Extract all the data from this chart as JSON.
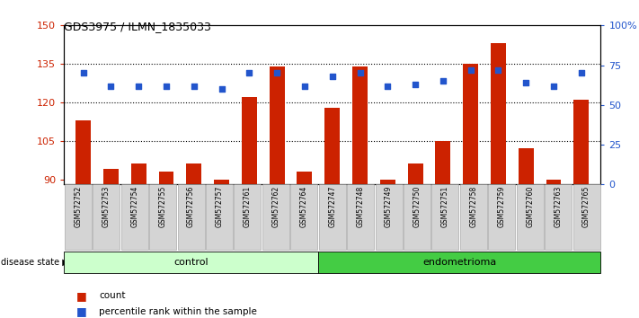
{
  "title": "GDS3975 / ILMN_1835033",
  "samples": [
    "GSM572752",
    "GSM572753",
    "GSM572754",
    "GSM572755",
    "GSM572756",
    "GSM572757",
    "GSM572761",
    "GSM572762",
    "GSM572764",
    "GSM572747",
    "GSM572748",
    "GSM572749",
    "GSM572750",
    "GSM572751",
    "GSM572758",
    "GSM572759",
    "GSM572760",
    "GSM572763",
    "GSM572765"
  ],
  "bar_values": [
    113,
    94,
    96,
    93,
    96,
    90,
    122,
    134,
    93,
    118,
    134,
    90,
    96,
    105,
    135,
    143,
    102,
    90,
    121
  ],
  "dot_values": [
    70,
    62,
    62,
    62,
    62,
    60,
    70,
    70,
    62,
    68,
    70,
    62,
    63,
    65,
    72,
    72,
    64,
    62,
    70
  ],
  "ylim_left": [
    88,
    150
  ],
  "ylim_right": [
    0,
    100
  ],
  "yticks_left": [
    90,
    105,
    120,
    135,
    150
  ],
  "yticks_right": [
    0,
    25,
    50,
    75,
    100
  ],
  "ytick_labels_left": [
    "90",
    "105",
    "120",
    "135",
    "150"
  ],
  "ytick_labels_right": [
    "0",
    "25",
    "50",
    "75",
    "100%"
  ],
  "bar_color": "#cc2200",
  "dot_color": "#2255cc",
  "n_control": 9,
  "n_endo": 10,
  "control_label": "control",
  "endometrioma_label": "endometrioma",
  "disease_state_label": "disease state",
  "legend_bar_label": "count",
  "legend_dot_label": "percentile rank within the sample",
  "plot_bg": "#ffffff",
  "control_bg": "#ccffcc",
  "endometrioma_bg": "#44cc44",
  "tick_bg": "#d4d4d4"
}
